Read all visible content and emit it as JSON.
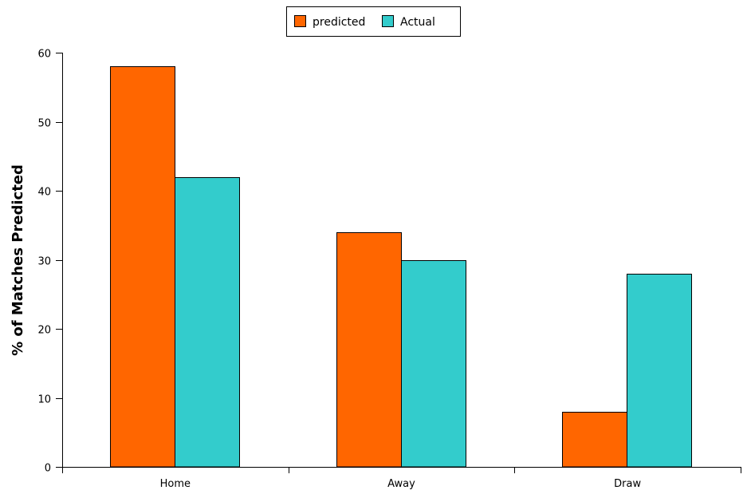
{
  "chart_data": {
    "type": "bar",
    "title": "",
    "xlabel": "",
    "ylabel": "% of Matches Predicted",
    "categories": [
      "Home",
      "Away",
      "Draw"
    ],
    "series": [
      {
        "name": "predicted",
        "values": [
          58,
          34,
          8
        ],
        "color": "#ff6600"
      },
      {
        "name": "Actual",
        "values": [
          42,
          30,
          28
        ],
        "color": "#33cccc"
      }
    ],
    "ylim": [
      0,
      60
    ],
    "yticks": [
      0,
      10,
      20,
      30,
      40,
      50,
      60
    ],
    "grid": false,
    "legend_position": "top-center"
  }
}
